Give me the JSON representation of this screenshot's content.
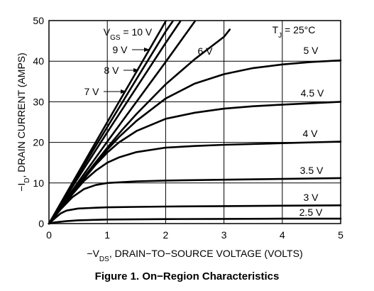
{
  "chart_data": {
    "type": "line",
    "title": "Figure 1. On−Region Characteristics",
    "xlabel": "−V<sub>DS</sub>, DRAIN−TO−SOURCE VOLTAGE (VOLTS)",
    "ylabel": "−I<sub>D</sub>, DRAIN CURRENT (AMPS)",
    "xlim": [
      0,
      5
    ],
    "ylim": [
      0,
      50
    ],
    "xticks": [
      "0",
      "1",
      "2",
      "3",
      "4",
      "5"
    ],
    "yticks": [
      "0",
      "10",
      "20",
      "30",
      "40",
      "50"
    ],
    "grid": true,
    "annotation": "T<sub>J</sub> = 25°C",
    "series": [
      {
        "name": "2.5 V",
        "x": [
          0,
          0.1,
          0.3,
          0.5,
          1,
          2,
          3,
          4,
          5
        ],
        "y": [
          0,
          0.3,
          0.6,
          0.8,
          1.0,
          1.1,
          1.15,
          1.2,
          1.2
        ]
      },
      {
        "name": "3 V",
        "x": [
          0,
          0.1,
          0.2,
          0.3,
          0.5,
          0.8,
          1,
          1.5,
          2,
          3,
          4,
          5
        ],
        "y": [
          0,
          1.3,
          2.5,
          3.2,
          3.7,
          3.9,
          4.0,
          4.1,
          4.2,
          4.3,
          4.4,
          4.5
        ]
      },
      {
        "name": "3.5 V",
        "x": [
          0,
          0.2,
          0.4,
          0.6,
          0.8,
          1,
          1.5,
          2,
          3,
          4,
          5
        ],
        "y": [
          0,
          3.5,
          6.5,
          8.5,
          9.5,
          10.0,
          10.4,
          10.6,
          10.8,
          11.0,
          11.2
        ]
      },
      {
        "name": "4 V",
        "x": [
          0,
          0.2,
          0.4,
          0.6,
          0.8,
          1,
          1.2,
          1.5,
          2,
          2.5,
          3,
          4,
          5
        ],
        "y": [
          0,
          3.6,
          7.2,
          10.5,
          13,
          15,
          16.3,
          17.6,
          18.7,
          19.1,
          19.4,
          19.8,
          20.2
        ]
      },
      {
        "name": "4.5 V",
        "x": [
          0,
          0.2,
          0.4,
          0.6,
          0.8,
          1,
          1.2,
          1.5,
          2,
          2.5,
          3,
          3.5,
          4,
          5
        ],
        "y": [
          0,
          3.7,
          7.4,
          11,
          14.5,
          17.5,
          20,
          22.8,
          25.8,
          27.3,
          28.3,
          28.9,
          29.3,
          30.0
        ]
      },
      {
        "name": "5 V",
        "x": [
          0,
          0.2,
          0.4,
          0.6,
          0.8,
          1,
          1.2,
          1.5,
          2,
          2.5,
          3,
          3.5,
          4,
          4.5,
          5
        ],
        "y": [
          0,
          3.8,
          7.5,
          11.2,
          14.8,
          18.2,
          21.3,
          25.3,
          30.8,
          34.5,
          36.8,
          38.3,
          39.2,
          39.8,
          40.2
        ]
      },
      {
        "name": "6 V",
        "x": [
          0,
          0.25,
          0.5,
          0.75,
          1,
          1.25,
          1.5,
          2,
          2.5,
          3,
          3.1
        ],
        "y": [
          0,
          4.8,
          9.6,
          14.2,
          18.7,
          23,
          27,
          34.3,
          40.5,
          46,
          47.8
        ]
      },
      {
        "name": "7 V",
        "x": [
          0,
          0.5,
          1,
          1.5,
          2,
          2.5
        ],
        "y": [
          0,
          10.2,
          20.2,
          30,
          39.8,
          49.8
        ]
      },
      {
        "name": "8 V",
        "x": [
          0,
          0.5,
          1,
          1.5,
          2,
          2.25
        ],
        "y": [
          0,
          11.3,
          22.5,
          33.5,
          44.5,
          49.8
        ]
      },
      {
        "name": "9 V",
        "x": [
          0,
          0.5,
          1,
          1.5,
          2,
          2.12
        ],
        "y": [
          0,
          12,
          23.8,
          35.6,
          47.3,
          49.8
        ]
      },
      {
        "name": "V<sub>GS</sub> = 10 V",
        "x": [
          0,
          0.5,
          1,
          1.5,
          2
        ],
        "y": [
          0,
          12.5,
          25,
          37.4,
          49.8
        ]
      }
    ]
  },
  "caption": "Figure 1. On−Region Characteristics"
}
